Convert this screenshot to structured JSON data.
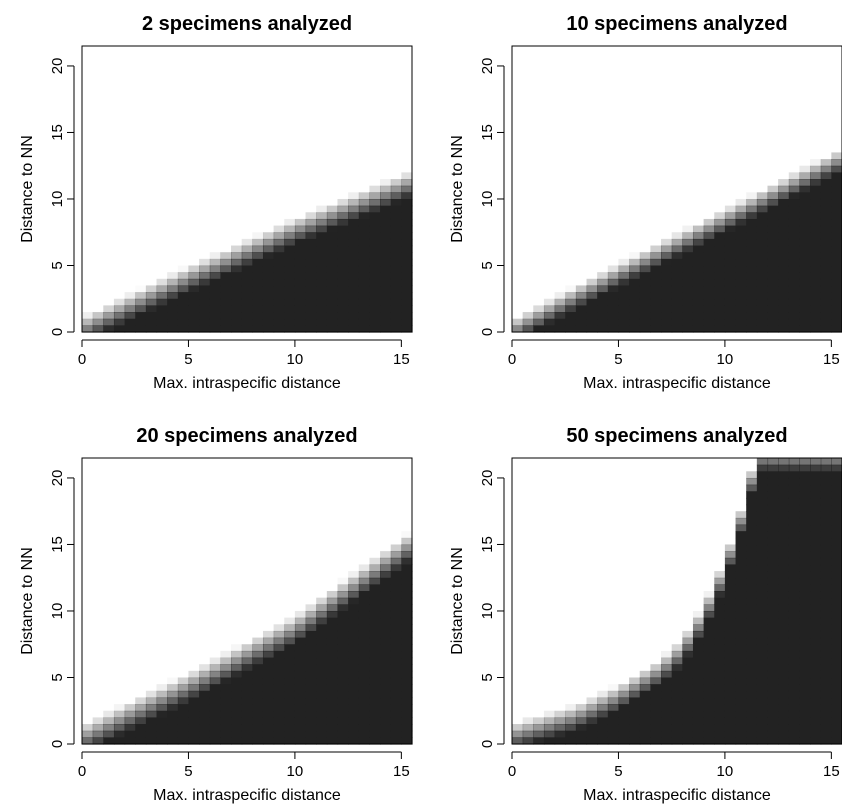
{
  "colors": {
    "fill_dark": "#222222",
    "background": "#ffffff",
    "axis": "#000000"
  },
  "chart_data": [
    {
      "type": "heatmap",
      "title": "2 specimens analyzed",
      "xlabel": "Max. intraspecific distance",
      "ylabel": "Distance to NN",
      "xlim": [
        0,
        15.5
      ],
      "ylim": [
        0,
        21.5
      ],
      "xticks": [
        0,
        5,
        10,
        15
      ],
      "yticks": [
        0,
        5,
        10,
        15,
        20
      ],
      "boundary": {
        "x": [
          0,
          5,
          10,
          15.5
        ],
        "y": [
          0.2,
          4.0,
          7.6,
          11.2
        ]
      },
      "transition_width": 2.0,
      "grid": false
    },
    {
      "type": "heatmap",
      "title": "10 specimens analyzed",
      "xlabel": "Max. intraspecific distance",
      "ylabel": "Distance to NN",
      "xlim": [
        0,
        15.5
      ],
      "ylim": [
        0,
        21.5
      ],
      "xticks": [
        0,
        5,
        10,
        15
      ],
      "yticks": [
        0,
        5,
        10,
        15,
        20
      ],
      "boundary": {
        "x": [
          0,
          5,
          10,
          15.5
        ],
        "y": [
          0.1,
          4.3,
          8.4,
          13.0
        ]
      },
      "transition_width": 1.8,
      "grid": false
    },
    {
      "type": "heatmap",
      "title": "20 specimens analyzed",
      "xlabel": "Max. intraspecific distance",
      "ylabel": "Distance to NN",
      "xlim": [
        0,
        15.5
      ],
      "ylim": [
        0,
        21.5
      ],
      "xticks": [
        0,
        5,
        10,
        15
      ],
      "yticks": [
        0,
        5,
        10,
        15,
        20
      ],
      "boundary": {
        "x": [
          0,
          5,
          10,
          15.5
        ],
        "y": [
          0.4,
          4.3,
          8.6,
          15.0
        ]
      },
      "transition_width": 2.2,
      "grid": false
    },
    {
      "type": "heatmap",
      "title": "50 specimens analyzed",
      "xlabel": "Max. intraspecific distance",
      "ylabel": "Distance to NN",
      "xlim": [
        0,
        15.5
      ],
      "ylim": [
        0,
        21.5
      ],
      "xticks": [
        0,
        5,
        10,
        15
      ],
      "yticks": [
        0,
        5,
        10,
        15,
        20
      ],
      "boundary": {
        "x": [
          0,
          3,
          5,
          7,
          8,
          9,
          10,
          11,
          11.5,
          12
        ],
        "y": [
          0.6,
          2.0,
          3.5,
          5.5,
          7.0,
          9.5,
          13.0,
          18.0,
          21.5,
          21.5
        ]
      },
      "transition_width": 2.0,
      "grid": false
    }
  ]
}
